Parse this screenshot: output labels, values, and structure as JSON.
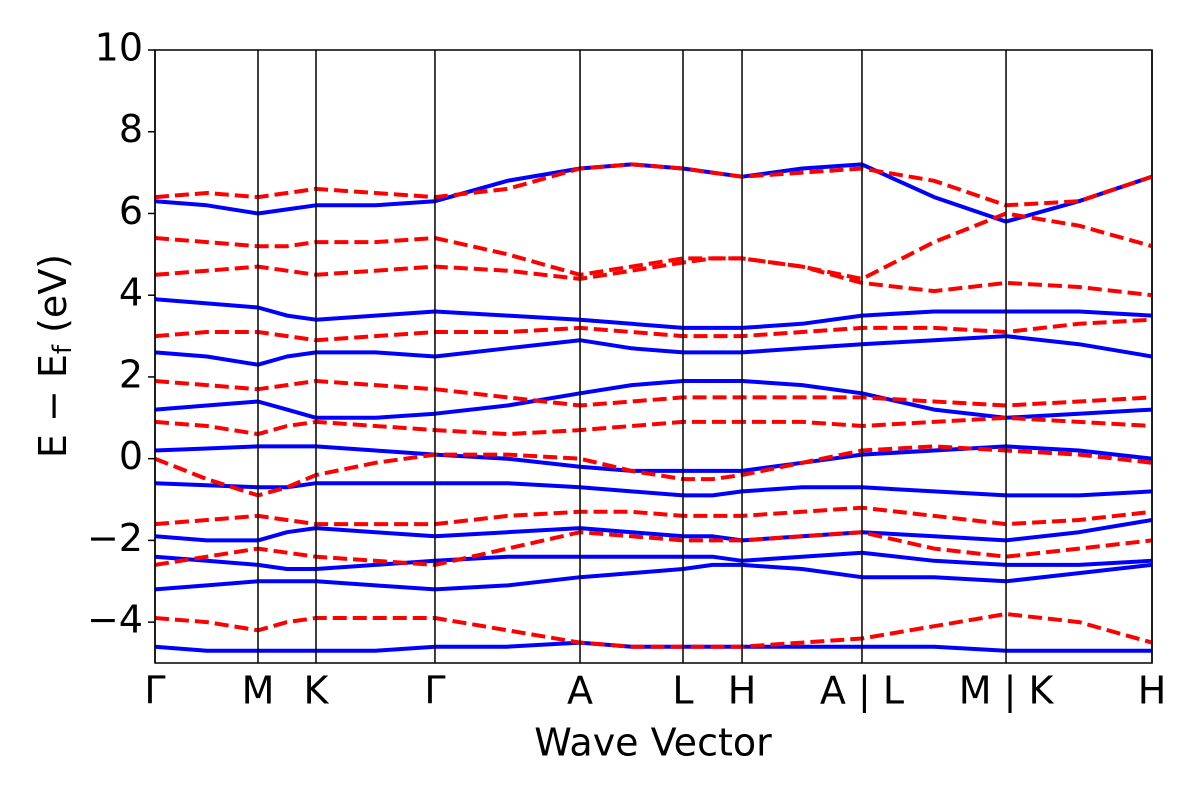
{
  "chart_data": {
    "type": "line",
    "xlabel": "Wave Vector",
    "ylabel": [
      "E − E",
      "f",
      " (eV)"
    ],
    "x": [
      0,
      0.052,
      0.1033,
      0.1324,
      0.1615,
      0.2212,
      0.2808,
      0.3536,
      0.4263,
      0.478,
      0.5296,
      0.5592,
      0.5888,
      0.649,
      0.7091,
      0.7814,
      0.8536,
      0.9268,
      1.0
    ],
    "xlim": [
      0,
      1.0
    ],
    "xticks": [
      {
        "value": 0,
        "label": "Γ"
      },
      {
        "value": 0.1033,
        "label": "M"
      },
      {
        "value": 0.1615,
        "label": "K"
      },
      {
        "value": 0.2808,
        "label": "Γ"
      },
      {
        "value": 0.4263,
        "label": "A"
      },
      {
        "value": 0.5296,
        "label": "L"
      },
      {
        "value": 0.5888,
        "label": "H"
      },
      {
        "value": 0.7091,
        "label": "A | L"
      },
      {
        "value": 0.8536,
        "label": "M | K"
      },
      {
        "value": 1.0,
        "label": "H"
      }
    ],
    "ylim": [
      -5,
      10
    ],
    "yticks": [
      {
        "value": -4,
        "label": "−4"
      },
      {
        "value": -2,
        "label": "−2"
      },
      0,
      2,
      4,
      6,
      8,
      10
    ],
    "series": [
      {
        "color": "#0000ff",
        "dash": false,
        "values": [
          -3.2,
          -3.1,
          -3.0,
          -3.0,
          -3.0,
          -3.1,
          -3.2,
          -3.1,
          -2.9,
          -2.8,
          -2.7,
          -2.6,
          -2.6,
          -2.7,
          -2.9,
          -2.9,
          -3.0,
          -2.8,
          -2.6
        ]
      },
      {
        "color": "#0000ff",
        "dash": false,
        "values": [
          -2.4,
          -2.5,
          -2.6,
          -2.7,
          -2.7,
          -2.6,
          -2.5,
          -2.4,
          -2.4,
          -2.4,
          -2.4,
          -2.4,
          -2.5,
          -2.4,
          -2.3,
          -2.5,
          -2.6,
          -2.6,
          -2.5
        ]
      },
      {
        "color": "#0000ff",
        "dash": false,
        "values": [
          -1.9,
          -2.0,
          -2.0,
          -1.8,
          -1.7,
          -1.8,
          -1.9,
          -1.8,
          -1.7,
          -1.8,
          -1.9,
          -1.9,
          -2.0,
          -1.9,
          -1.8,
          -1.9,
          -2.0,
          -1.8,
          -1.5
        ]
      },
      {
        "color": "#0000ff",
        "dash": false,
        "values": [
          -0.6,
          -0.65,
          -0.7,
          -0.7,
          -0.6,
          -0.6,
          -0.6,
          -0.6,
          -0.7,
          -0.8,
          -0.9,
          -0.9,
          -0.8,
          -0.7,
          -0.7,
          -0.8,
          -0.9,
          -0.9,
          -0.8
        ]
      },
      {
        "color": "#0000ff",
        "dash": false,
        "values": [
          0.2,
          0.25,
          0.3,
          0.3,
          0.3,
          0.2,
          0.1,
          0.0,
          -0.2,
          -0.3,
          -0.3,
          -0.3,
          -0.3,
          -0.1,
          0.1,
          0.2,
          0.3,
          0.2,
          0.0
        ]
      },
      {
        "color": "#0000ff",
        "dash": false,
        "values": [
          1.2,
          1.3,
          1.4,
          1.2,
          1.0,
          1.0,
          1.1,
          1.3,
          1.6,
          1.8,
          1.9,
          1.9,
          1.9,
          1.8,
          1.6,
          1.2,
          1.0,
          1.1,
          1.2
        ]
      },
      {
        "color": "#0000ff",
        "dash": false,
        "values": [
          2.6,
          2.5,
          2.3,
          2.5,
          2.6,
          2.6,
          2.5,
          2.7,
          2.9,
          2.7,
          2.6,
          2.6,
          2.6,
          2.7,
          2.8,
          2.9,
          3.0,
          2.8,
          2.5
        ]
      },
      {
        "color": "#0000ff",
        "dash": false,
        "values": [
          3.9,
          3.8,
          3.7,
          3.5,
          3.4,
          3.5,
          3.6,
          3.5,
          3.4,
          3.3,
          3.2,
          3.2,
          3.2,
          3.3,
          3.5,
          3.6,
          3.6,
          3.6,
          3.5
        ]
      },
      {
        "color": "#0000ff",
        "dash": false,
        "values": [
          -4.6,
          -4.7,
          -4.7,
          -4.7,
          -4.7,
          -4.7,
          -4.6,
          -4.6,
          -4.5,
          -4.6,
          -4.6,
          -4.6,
          -4.6,
          -4.6,
          -4.6,
          -4.6,
          -4.7,
          -4.7,
          -4.7
        ]
      },
      {
        "color": "#0000ff",
        "dash": false,
        "values": [
          6.3,
          6.2,
          6.0,
          6.1,
          6.2,
          6.2,
          6.3,
          6.8,
          7.1,
          7.2,
          7.1,
          7.0,
          6.9,
          7.1,
          7.2,
          6.4,
          5.8,
          6.3,
          6.9
        ]
      },
      {
        "color": "#ff0000",
        "dash": true,
        "values": [
          -2.6,
          -2.4,
          -2.2,
          -2.3,
          -2.4,
          -2.5,
          -2.6,
          -2.2,
          -1.8,
          -1.9,
          -2.0,
          -2.0,
          -2.0,
          -1.9,
          -1.8,
          -2.2,
          -2.4,
          -2.2,
          -2.0
        ]
      },
      {
        "color": "#ff0000",
        "dash": true,
        "values": [
          -1.6,
          -1.5,
          -1.4,
          -1.5,
          -1.6,
          -1.6,
          -1.6,
          -1.4,
          -1.3,
          -1.3,
          -1.4,
          -1.4,
          -1.4,
          -1.3,
          -1.2,
          -1.4,
          -1.6,
          -1.5,
          -1.3
        ]
      },
      {
        "color": "#ff0000",
        "dash": true,
        "values": [
          0.0,
          -0.5,
          -0.9,
          -0.7,
          -0.4,
          -0.1,
          0.1,
          0.1,
          0.0,
          -0.3,
          -0.5,
          -0.5,
          -0.4,
          -0.1,
          0.2,
          0.3,
          0.2,
          0.1,
          -0.1
        ]
      },
      {
        "color": "#ff0000",
        "dash": true,
        "values": [
          0.9,
          0.8,
          0.6,
          0.8,
          0.9,
          0.8,
          0.7,
          0.6,
          0.7,
          0.8,
          0.9,
          0.9,
          0.9,
          0.9,
          0.8,
          0.9,
          1.0,
          0.9,
          0.8
        ]
      },
      {
        "color": "#ff0000",
        "dash": true,
        "values": [
          1.9,
          1.8,
          1.7,
          1.8,
          1.9,
          1.8,
          1.7,
          1.5,
          1.3,
          1.4,
          1.5,
          1.5,
          1.5,
          1.5,
          1.5,
          1.4,
          1.3,
          1.4,
          1.5
        ]
      },
      {
        "color": "#ff0000",
        "dash": true,
        "values": [
          3.0,
          3.1,
          3.1,
          3.0,
          2.9,
          3.0,
          3.1,
          3.1,
          3.2,
          3.1,
          3.0,
          3.0,
          3.0,
          3.1,
          3.2,
          3.2,
          3.1,
          3.3,
          3.4
        ]
      },
      {
        "color": "#ff0000",
        "dash": true,
        "values": [
          5.4,
          5.3,
          5.2,
          5.2,
          5.3,
          5.3,
          5.4,
          5.0,
          4.5,
          4.7,
          4.9,
          4.9,
          4.9,
          4.7,
          4.4,
          5.3,
          6.0,
          5.7,
          5.2
        ]
      },
      {
        "color": "#ff0000",
        "dash": true,
        "values": [
          6.4,
          6.5,
          6.4,
          6.5,
          6.6,
          6.5,
          6.4,
          6.6,
          7.1,
          7.2,
          7.1,
          7.0,
          6.9,
          7.0,
          7.1,
          6.8,
          6.2,
          6.3,
          6.9
        ]
      },
      {
        "color": "#ff0000",
        "dash": true,
        "values": [
          -3.9,
          -4.0,
          -4.2,
          -4.0,
          -3.9,
          -3.9,
          -3.9,
          -4.2,
          -4.5,
          -4.6,
          -4.6,
          -4.6,
          -4.6,
          -4.5,
          -4.4,
          -4.1,
          -3.8,
          -4.0,
          -4.5
        ]
      },
      {
        "color": "#ff0000",
        "dash": true,
        "values": [
          4.5,
          4.6,
          4.7,
          4.6,
          4.5,
          4.6,
          4.7,
          4.6,
          4.4,
          4.6,
          4.8,
          4.9,
          4.9,
          4.7,
          4.3,
          4.1,
          4.3,
          4.2,
          4.0
        ]
      }
    ]
  }
}
